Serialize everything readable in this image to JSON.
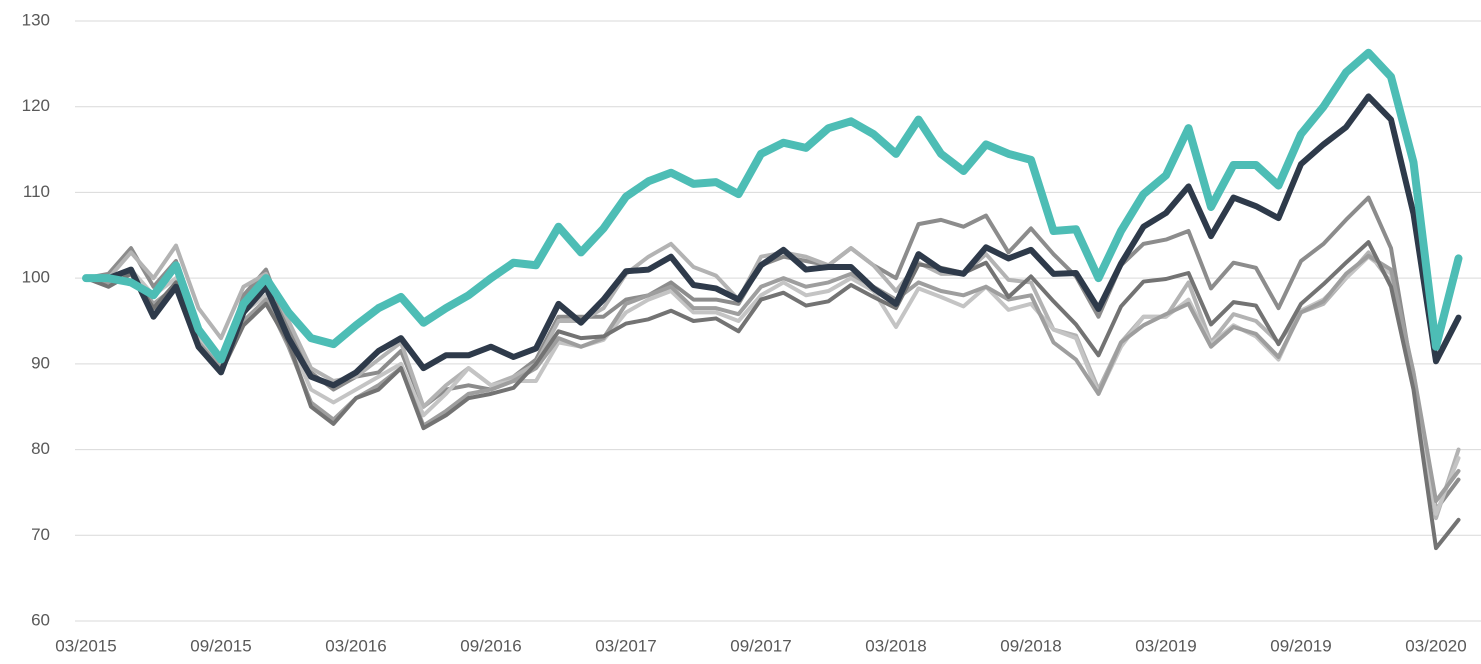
{
  "chart_data": {
    "type": "line",
    "categories": [
      "03/2015",
      null,
      null,
      null,
      null,
      null,
      "09/2015",
      null,
      null,
      null,
      null,
      null,
      "03/2016",
      null,
      null,
      null,
      null,
      null,
      "09/2016",
      null,
      null,
      null,
      null,
      null,
      "03/2017",
      null,
      null,
      null,
      null,
      null,
      "09/2017",
      null,
      null,
      null,
      null,
      null,
      "03/2018",
      null,
      null,
      null,
      null,
      null,
      "09/2018",
      null,
      null,
      null,
      null,
      null,
      "03/2019",
      null,
      null,
      null,
      null,
      null,
      "09/2019",
      null,
      null,
      null,
      null,
      null,
      "03/2020",
      null
    ],
    "ylim": [
      60,
      130
    ],
    "yticks": [
      60,
      70,
      80,
      90,
      100,
      110,
      120,
      130
    ],
    "grid": true,
    "series": [
      {
        "color": "#8c8c8c",
        "values": [
          100,
          100.5,
          103.5,
          99,
          102,
          93.5,
          89.5,
          98,
          101,
          94,
          89,
          87,
          88.5,
          89,
          91.5,
          85,
          87,
          87.5,
          87,
          88.5,
          90.5,
          95.5,
          95.5,
          95.5,
          97.5,
          98,
          99.5,
          97.5,
          97.5,
          97,
          101.5,
          102.5,
          102,
          101.5,
          103.5,
          101.5,
          100,
          106.3,
          106.8,
          106,
          107.3,
          103,
          105.8,
          102.8,
          100.2,
          95.5,
          101.5,
          104,
          104.5,
          105.5,
          98.8,
          101.8,
          101.2,
          96.5,
          102,
          104,
          106.8,
          109.4,
          103.5,
          88,
          73,
          76.5
        ]
      },
      {
        "color": "#b3b3b3",
        "values": [
          100,
          100,
          103,
          100,
          103.8,
          96.5,
          93,
          99,
          100.5,
          95,
          89.5,
          88,
          88.5,
          90.5,
          92.5,
          85,
          87.5,
          89.5,
          87.5,
          88.5,
          90,
          95,
          95,
          96.5,
          100.5,
          102.5,
          104,
          101.3,
          100.3,
          97.5,
          102.5,
          103,
          102.5,
          101.5,
          103.5,
          101.5,
          98.5,
          101.8,
          100.5,
          100.5,
          102.8,
          99.8,
          99.5,
          94,
          93.3,
          87,
          92.5,
          95.5,
          95.5,
          99.5,
          92.5,
          95.8,
          95,
          92.5,
          96,
          97,
          100,
          103,
          99.5,
          88,
          72,
          80
        ]
      },
      {
        "color": "#c4c4c4",
        "values": [
          100,
          99.8,
          101,
          98,
          100,
          93,
          90,
          96,
          98,
          93,
          87,
          85.5,
          87,
          88.5,
          90,
          84,
          86.5,
          89.5,
          87.5,
          88,
          88,
          92.5,
          92,
          92.8,
          96,
          97.5,
          98.5,
          96,
          96,
          95,
          98,
          99.5,
          98,
          98.5,
          100,
          98.5,
          94.3,
          98.8,
          97.8,
          96.7,
          99,
          96.3,
          97,
          94,
          93,
          86.5,
          92,
          95.5,
          95.5,
          97.5,
          92.3,
          94.5,
          93.2,
          90.5,
          96.2,
          97.5,
          100,
          102.5,
          100.5,
          89,
          72.5,
          79
        ]
      },
      {
        "color": "#9e9e9e",
        "values": [
          100,
          99.5,
          100.5,
          97,
          99,
          92.5,
          89.5,
          95,
          97.5,
          92,
          85.5,
          83.5,
          86,
          87.5,
          89.5,
          82.8,
          84.5,
          86.5,
          87,
          88,
          89.5,
          93,
          92,
          93,
          97,
          98,
          99,
          96.5,
          96.5,
          95.8,
          99,
          100,
          99,
          99.5,
          100.5,
          99,
          97.5,
          99.5,
          98.5,
          98,
          99,
          97.5,
          98,
          92.5,
          90.5,
          86.5,
          92.5,
          94.5,
          95.8,
          97,
          92,
          94.3,
          93.5,
          90.8,
          96,
          97.3,
          100.5,
          102.6,
          101,
          89,
          74,
          77.5
        ]
      },
      {
        "color": "#737373",
        "values": [
          100,
          99,
          100.5,
          96.5,
          99.5,
          92,
          89,
          94.5,
          97,
          92.5,
          85,
          83,
          86,
          87,
          89.5,
          82.5,
          84,
          86,
          86.5,
          87.2,
          90,
          93.8,
          93,
          93.2,
          94.7,
          95.2,
          96.2,
          95,
          95.3,
          93.8,
          97.5,
          98.3,
          96.8,
          97.3,
          99.2,
          97.8,
          96.5,
          101.6,
          101.2,
          100.6,
          101.8,
          97.8,
          100.2,
          97.3,
          94.6,
          91,
          96.7,
          99.6,
          99.9,
          100.6,
          94.6,
          97.2,
          96.8,
          92.3,
          97,
          99.3,
          101.8,
          104.2,
          99,
          87,
          68.5,
          71.8
        ]
      },
      {
        "color": "#2e3a4a",
        "values": [
          100,
          100,
          101,
          95.5,
          99,
          92,
          89,
          96,
          99,
          93,
          88.5,
          87.5,
          89,
          91.5,
          93,
          89.5,
          91,
          91,
          92,
          90.8,
          91.8,
          97,
          94.8,
          97.5,
          100.8,
          101,
          102.5,
          99.2,
          98.8,
          97.5,
          101.5,
          103.3,
          101,
          101.3,
          101.3,
          98.8,
          97,
          102.8,
          101,
          100.5,
          103.6,
          102.3,
          103.3,
          100.5,
          100.6,
          96.4,
          101.7,
          106,
          107.6,
          110.7,
          104.9,
          109.4,
          108.4,
          107,
          113.3,
          115.6,
          117.6,
          121.2,
          118.5,
          107.5,
          90.3,
          95.4
        ]
      },
      {
        "color": "#4dbdb5",
        "values": [
          100,
          100,
          99.5,
          98,
          101.5,
          94,
          90.5,
          97,
          100,
          96,
          93,
          92.3,
          94.5,
          96.5,
          97.8,
          94.8,
          96.5,
          98,
          100,
          101.8,
          101.5,
          106,
          103,
          105.8,
          109.5,
          111.3,
          112.3,
          111,
          111.2,
          109.8,
          114.5,
          115.8,
          115.2,
          117.5,
          118.3,
          116.8,
          114.5,
          118.5,
          114.5,
          112.5,
          115.6,
          114.5,
          113.8,
          105.5,
          105.7,
          100,
          105.5,
          109.8,
          112,
          117.5,
          108.3,
          113.2,
          113.2,
          110.8,
          116.8,
          120,
          124,
          126.3,
          123.5,
          113.5,
          92,
          102.3
        ]
      }
    ]
  }
}
